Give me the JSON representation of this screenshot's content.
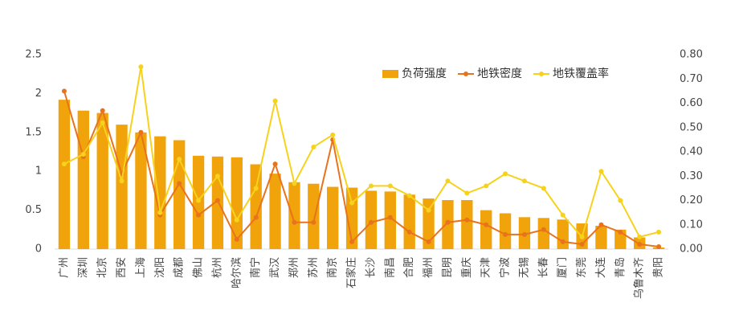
{
  "chart_data": {
    "type": "bar",
    "categories": [
      "广州",
      "深圳",
      "北京",
      "西安",
      "上海",
      "沈阳",
      "成都",
      "佛山",
      "杭州",
      "哈尔滨",
      "南宁",
      "武汉",
      "郑州",
      "苏州",
      "南京",
      "石家庄",
      "长沙",
      "南昌",
      "合肥",
      "福州",
      "昆明",
      "重庆",
      "天津",
      "宁波",
      "无锡",
      "长春",
      "厦门",
      "东莞",
      "大连",
      "青岛",
      "乌鲁木齐",
      "贵阳"
    ],
    "series": [
      {
        "name": "负荷强度",
        "type": "bar",
        "color": "#f0a30a",
        "values": [
          1.92,
          1.78,
          1.75,
          1.6,
          1.5,
          1.45,
          1.4,
          1.2,
          1.19,
          1.18,
          1.09,
          0.97,
          0.86,
          0.84,
          0.8,
          0.79,
          0.75,
          0.74,
          0.7,
          0.65,
          0.63,
          0.63,
          0.5,
          0.46,
          0.41,
          0.4,
          0.38,
          0.33,
          0.3,
          0.25,
          0.15,
          0.02
        ]
      },
      {
        "name": "地铁密度",
        "type": "line",
        "axis": "y2",
        "color": "#e8731c",
        "values": [
          0.65,
          0.38,
          0.57,
          0.31,
          0.48,
          0.14,
          0.27,
          0.14,
          0.2,
          0.04,
          0.13,
          0.35,
          0.11,
          0.11,
          0.45,
          0.03,
          0.11,
          0.13,
          0.07,
          0.03,
          0.11,
          0.12,
          0.1,
          0.06,
          0.06,
          0.08,
          0.03,
          0.02,
          0.1,
          0.07,
          0.02,
          0.01
        ]
      },
      {
        "name": "地铁覆盖率",
        "type": "line",
        "axis": "y2",
        "color": "#f7d21c",
        "values": [
          0.35,
          0.39,
          0.52,
          0.28,
          0.75,
          0.15,
          0.37,
          0.2,
          0.3,
          0.12,
          0.25,
          0.61,
          0.27,
          0.42,
          0.47,
          0.19,
          0.26,
          0.26,
          0.22,
          0.16,
          0.28,
          0.23,
          0.26,
          0.31,
          0.28,
          0.25,
          0.14,
          0.05,
          0.32,
          0.2,
          0.05,
          0.07
        ]
      }
    ],
    "ylim": [
      0,
      2.5
    ],
    "yticks": [
      0,
      0.5,
      1,
      1.5,
      2,
      2.5
    ],
    "y2lim": [
      0,
      0.8
    ],
    "y2ticks": [
      {
        "value": 0,
        "label": "0.00"
      },
      {
        "value": 0.1,
        "label": "0.10"
      },
      {
        "value": 0.2,
        "label": "0.20"
      },
      {
        "value": 0.3,
        "label": "0.30"
      },
      {
        "value": 0.4,
        "label": "0.40"
      },
      {
        "value": 0.5,
        "label": "0.50"
      },
      {
        "value": 0.6,
        "label": "0.60"
      },
      {
        "value": 0.7,
        "label": "0.70"
      },
      {
        "value": 0.8,
        "label": "0.80"
      }
    ],
    "grid": false,
    "legend": "upper right"
  }
}
